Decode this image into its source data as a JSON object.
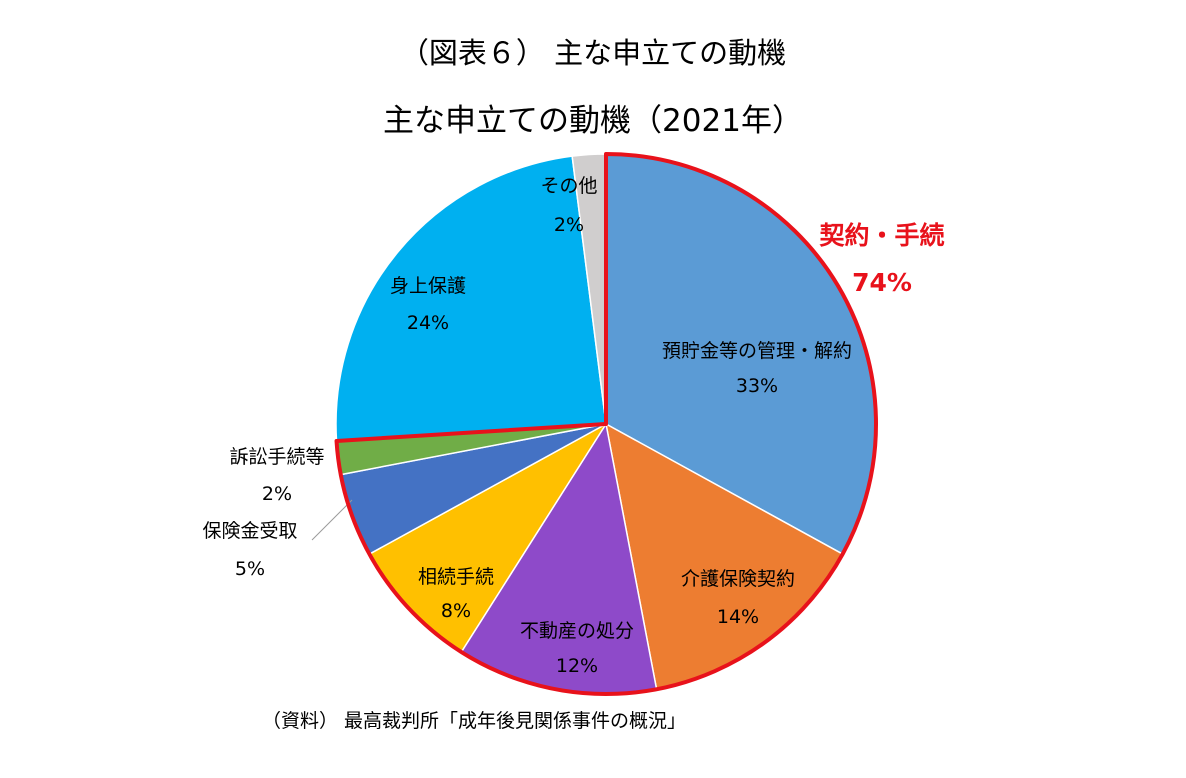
{
  "figure_title": "（図表６） 主な申立ての動機",
  "source": "（資料） 最高裁判所「成年後見関係事件の概況」",
  "colors": {
    "highlight": "#e8121b"
  },
  "chart_data": {
    "type": "pie",
    "title": "主な申立ての動機（2021年）",
    "slices": [
      {
        "label": "預貯金等の管理・解約",
        "value": 33,
        "value_label": "33%",
        "color": "#5b9bd5"
      },
      {
        "label": "介護保険契約",
        "value": 14,
        "value_label": "14%",
        "color": "#ed7d31"
      },
      {
        "label": "不動産の処分",
        "value": 12,
        "value_label": "12%",
        "color": "#8e4ac9"
      },
      {
        "label": "相続手続",
        "value": 8,
        "value_label": "8%",
        "color": "#ffc000"
      },
      {
        "label": "保険金受取",
        "value": 5,
        "value_label": "5%",
        "color": "#4472c4"
      },
      {
        "label": "訴訟手続等",
        "value": 2,
        "value_label": "2%",
        "color": "#70ad47"
      },
      {
        "label": "身上保護",
        "value": 24,
        "value_label": "24%",
        "color": "#00b0f0"
      },
      {
        "label": "その他",
        "value": 2,
        "value_label": "2%",
        "color": "#d0cece"
      }
    ],
    "highlight_group": {
      "label": "契約・手続",
      "value_label": "74%",
      "slices": [
        0,
        1,
        2,
        3,
        4,
        5
      ]
    }
  }
}
